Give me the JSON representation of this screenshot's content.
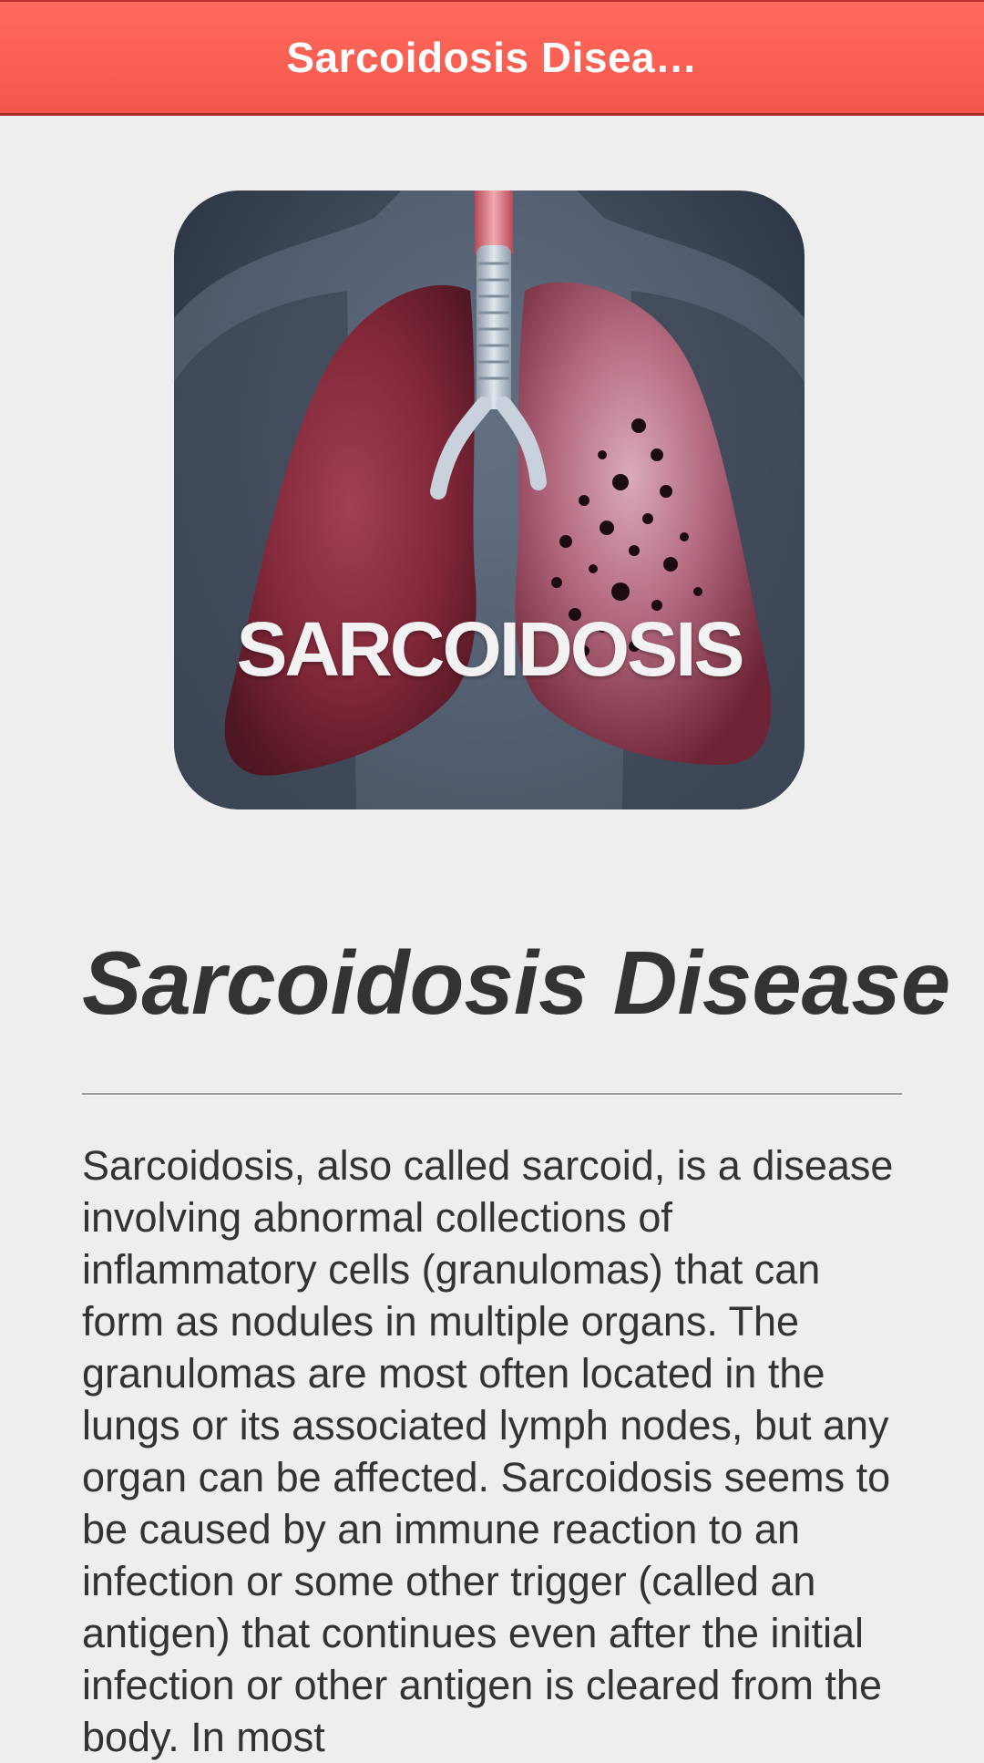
{
  "app_bar": {
    "title": "Sarcoidosis Disea…",
    "background": "#f4564a"
  },
  "hero": {
    "caption": "SARCOIDOSIS"
  },
  "article": {
    "title": "Sarcoidosis Disease",
    "body": "Sarcoidosis, also called sarcoid, is a disease involving abnormal collections of inflammatory cells (granulomas) that can form as nodules in multiple organs. The granulomas are most often located in the lungs or its associated lymph nodes, but any organ can be affected. Sarcoidosis seems to be caused by an immune reaction to an infection or some other trigger (called an antigen) that continues even after the initial infection or other antigen is cleared from the body. In most"
  }
}
